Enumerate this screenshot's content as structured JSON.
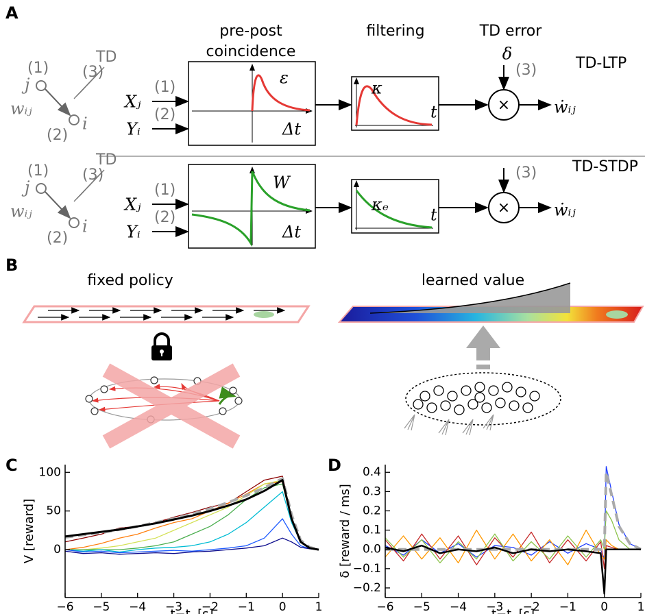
{
  "panel_labels": [
    "A",
    "B",
    "C",
    "D"
  ],
  "panel_a": {
    "headers": [
      "pre-post",
      "coincidence",
      "filtering",
      "TD error"
    ],
    "delta": "δ",
    "rows": [
      {
        "name": "TD-LTP",
        "pre": "j",
        "pre_tag": "(1)",
        "td": "TD",
        "td_tag": "(3)",
        "weight": "wᵢⱼ",
        "post_tag": "(2)",
        "post": "i",
        "input_x": "Xⱼ",
        "input_x_tag": "(1)",
        "input_y": "Yᵢ",
        "input_y_tag": "(2)",
        "kernel": "ε",
        "kernel_axis": "Δt",
        "filter": "κ",
        "filter_axis": "t",
        "mod_tag": "(3)",
        "times": "×",
        "output": "ẇᵢⱼ"
      },
      {
        "name": "TD-STDP",
        "pre": "j",
        "pre_tag": "(1)",
        "td": "TD",
        "td_tag": "(3)",
        "weight": "wᵢⱼ",
        "post_tag": "(2)",
        "post": "i",
        "input_x": "Xⱼ",
        "input_x_tag": "(1)",
        "input_y": "Yᵢ",
        "input_y_tag": "(2)",
        "kernel": "W",
        "kernel_axis": "Δt",
        "filter": "κₑ",
        "filter_axis": "t",
        "mod_tag": "(3)",
        "times": "×",
        "output": "ẇᵢⱼ"
      }
    ]
  },
  "panel_b": {
    "left_title": "fixed policy",
    "right_title": "learned value"
  },
  "chart_data": [
    {
      "type": "line",
      "ylabel": "V [reward]",
      "xlabel": "t−tᵣ [s]",
      "xlim": [
        -6,
        1
      ],
      "ylim": [
        -62,
        110
      ],
      "xticks": [
        {
          "value": -6,
          "label": "−6"
        },
        {
          "value": -5,
          "label": "−5"
        },
        {
          "value": -4,
          "label": "−4"
        },
        {
          "value": -3,
          "label": "−3"
        },
        {
          "value": -2,
          "label": "−2"
        },
        {
          "value": -1,
          "label": "−1"
        },
        0,
        1
      ],
      "yticks": [
        0,
        50,
        100
      ],
      "x": [
        -6,
        -5.5,
        -5,
        -4.5,
        -4,
        -3.5,
        -3,
        -2.5,
        -2,
        -1.5,
        -1,
        -0.5,
        0,
        0.25,
        0.5,
        0.75,
        1
      ],
      "series": [
        {
          "color": "#8b0000",
          "linestyle": "solid",
          "width": 1.3,
          "values": [
            10,
            15,
            20,
            28,
            30,
            35,
            42,
            48,
            55,
            60,
            75,
            90,
            95,
            40,
            10,
            2,
            0
          ]
        },
        {
          "color": "#ff7f0e",
          "linestyle": "solid",
          "width": 1.3,
          "values": [
            0,
            3,
            8,
            15,
            20,
            28,
            35,
            40,
            50,
            60,
            72,
            85,
            88,
            40,
            10,
            2,
            0
          ]
        },
        {
          "color": "#d4e157",
          "linestyle": "solid",
          "width": 1.3,
          "values": [
            0,
            0,
            2,
            5,
            10,
            15,
            25,
            35,
            45,
            55,
            70,
            85,
            90,
            40,
            10,
            2,
            0
          ]
        },
        {
          "color": "#4caf50",
          "linestyle": "solid",
          "width": 1.3,
          "values": [
            0,
            0,
            0,
            0,
            2,
            5,
            10,
            20,
            30,
            45,
            65,
            80,
            85,
            40,
            10,
            2,
            0
          ]
        },
        {
          "color": "#00bcd4",
          "linestyle": "solid",
          "width": 1.3,
          "values": [
            0,
            -2,
            0,
            -3,
            0,
            2,
            3,
            5,
            10,
            20,
            35,
            55,
            75,
            35,
            10,
            2,
            0
          ]
        },
        {
          "color": "#1e5bff",
          "linestyle": "solid",
          "width": 1.3,
          "values": [
            0,
            -3,
            -2,
            -4,
            -3,
            -2,
            -1,
            -2,
            0,
            2,
            5,
            15,
            40,
            20,
            5,
            1,
            0
          ]
        },
        {
          "color": "#0a0a8c",
          "linestyle": "solid",
          "width": 1.3,
          "values": [
            -2,
            -5,
            -4,
            -6,
            -5,
            -4,
            -5,
            -3,
            -2,
            0,
            2,
            5,
            15,
            10,
            3,
            1,
            0
          ]
        },
        {
          "color": "#aaaaaa",
          "linestyle": "dashed",
          "width": 4,
          "values": [
            16,
            19,
            22,
            26,
            30,
            35,
            40,
            46,
            53,
            61,
            70,
            80,
            92,
            45,
            12,
            3,
            0
          ]
        },
        {
          "color": "#000000",
          "linestyle": "solid",
          "width": 3,
          "values": [
            17,
            20,
            23,
            26,
            30,
            34,
            39,
            44,
            50,
            57,
            65,
            76,
            90,
            40,
            10,
            2,
            0
          ]
        }
      ]
    },
    {
      "type": "line",
      "ylabel": "δ [reward / ms]",
      "xlabel": "t−tᵣ [s]",
      "xlim": [
        -6,
        1
      ],
      "ylim": [
        -0.25,
        0.44
      ],
      "xticks": [
        {
          "value": -6,
          "label": "−6"
        },
        {
          "value": -5,
          "label": "−5"
        },
        {
          "value": -4,
          "label": "−4"
        },
        {
          "value": -3,
          "label": "−3"
        },
        {
          "value": -2,
          "label": "−2"
        },
        {
          "value": -1,
          "label": "−1"
        },
        0,
        1
      ],
      "yticks": [
        {
          "value": -0.2,
          "label": "−0.2"
        },
        {
          "value": -0.1,
          "label": "−0.1"
        },
        {
          "value": 0,
          "label": "0.0"
        },
        0.1,
        0.2,
        0.3,
        0.4
      ],
      "x": [
        -6,
        -5.5,
        -5,
        -4.5,
        -4,
        -3.5,
        -3,
        -2.5,
        -2,
        -1.5,
        -1,
        -0.5,
        -0.1,
        0,
        0.05,
        0.2,
        0.4,
        0.7,
        1
      ],
      "series": [
        {
          "color": "#1e3cff",
          "linestyle": "solid",
          "width": 1.3,
          "values": [
            0.02,
            -0.03,
            0.05,
            -0.02,
            0.03,
            -0.04,
            0.02,
            0.01,
            -0.03,
            0.04,
            -0.02,
            0.03,
            0.0,
            -0.05,
            0.43,
            0.3,
            0.13,
            0.03,
            0.0
          ]
        },
        {
          "color": "#c62828",
          "linestyle": "solid",
          "width": 1.3,
          "values": [
            0.05,
            -0.06,
            0.08,
            -0.05,
            0.07,
            -0.08,
            0.06,
            -0.04,
            0.09,
            -0.07,
            0.05,
            -0.06,
            0.04,
            -0.1,
            0.02,
            0.01,
            0.0,
            0.0,
            0.0
          ]
        },
        {
          "color": "#ff9800",
          "linestyle": "solid",
          "width": 1.3,
          "values": [
            -0.04,
            0.07,
            -0.05,
            0.06,
            -0.07,
            0.1,
            -0.05,
            0.08,
            -0.06,
            0.05,
            -0.08,
            0.1,
            -0.03,
            -0.05,
            0.05,
            0.02,
            0.0,
            0.0,
            0.0
          ]
        },
        {
          "color": "#8bc34a",
          "linestyle": "solid",
          "width": 1.3,
          "values": [
            0.06,
            -0.04,
            0.05,
            -0.07,
            0.04,
            -0.05,
            0.08,
            -0.06,
            0.04,
            -0.05,
            0.07,
            -0.04,
            0.05,
            0.0,
            0.2,
            0.15,
            0.05,
            0.0,
            0.0
          ]
        },
        {
          "color": "#aaaaaa",
          "linestyle": "dashed",
          "width": 4,
          "values": [
            0,
            0,
            0,
            0,
            0,
            0,
            0,
            0,
            0,
            0,
            0,
            0,
            0,
            0,
            0.4,
            0.28,
            0.12,
            0.03,
            0
          ]
        },
        {
          "color": "#000000",
          "linestyle": "solid",
          "width": 2.5,
          "values": [
            0.01,
            -0.01,
            0.02,
            -0.02,
            0.0,
            -0.01,
            0.01,
            -0.02,
            0.0,
            -0.01,
            0.0,
            -0.01,
            -0.02,
            -0.23,
            0.0,
            0.0,
            0.0,
            0.0,
            0.0
          ]
        }
      ]
    }
  ]
}
